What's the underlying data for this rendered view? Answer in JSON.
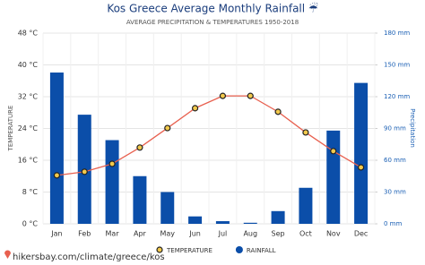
{
  "chart_data": {
    "type": "bar-line",
    "title": "Kos Greece Average Monthly Rainfall ☔",
    "subtitle": "AVERAGE PRECIPITATION & TEMPERATURES 1950-2018",
    "ylabel": "TEMPERATURE",
    "y2label": "Precipitation",
    "source": "hikersbay.com/climate/greece/kos",
    "categories": [
      "Jan",
      "Feb",
      "Mar",
      "Apr",
      "May",
      "Jun",
      "Jul",
      "Aug",
      "Sep",
      "Oct",
      "Nov",
      "Dec"
    ],
    "series": [
      {
        "name": "TEMPERATURE",
        "type": "line",
        "color": "#e8604f",
        "values": [
          12.2,
          13.1,
          15.1,
          19.2,
          24.1,
          29.1,
          32.2,
          32.2,
          28.2,
          23.0,
          18.3,
          14.2
        ]
      },
      {
        "name": "RAINFALL",
        "type": "bar",
        "axis": "y2",
        "color": "#0b4ea9",
        "values": [
          142.8,
          103,
          79,
          45,
          30,
          7,
          2.5,
          1,
          12,
          34,
          88,
          133
        ]
      }
    ],
    "ylim": [
      0,
      48
    ],
    "yticks": [
      {
        "value": 0,
        "label": "0 °C"
      },
      {
        "value": 8,
        "label": "8 °C"
      },
      {
        "value": 16,
        "label": "16 °C"
      },
      {
        "value": 24,
        "label": "24 °C"
      },
      {
        "value": 32,
        "label": "32 °C"
      },
      {
        "value": 40,
        "label": "40 °C"
      },
      {
        "value": 48,
        "label": "48 °C"
      }
    ],
    "y2lim": [
      0,
      180
    ],
    "y2ticks": [
      {
        "value": 0,
        "label": "0 mm"
      },
      {
        "value": 30,
        "label": "30 mm"
      },
      {
        "value": 60,
        "label": "60 mm"
      },
      {
        "value": 90,
        "label": "90 mm"
      },
      {
        "value": 120,
        "label": "120 mm"
      },
      {
        "value": 150,
        "label": "150 mm"
      },
      {
        "value": 180,
        "label": "180 mm"
      }
    ],
    "grid": true
  }
}
